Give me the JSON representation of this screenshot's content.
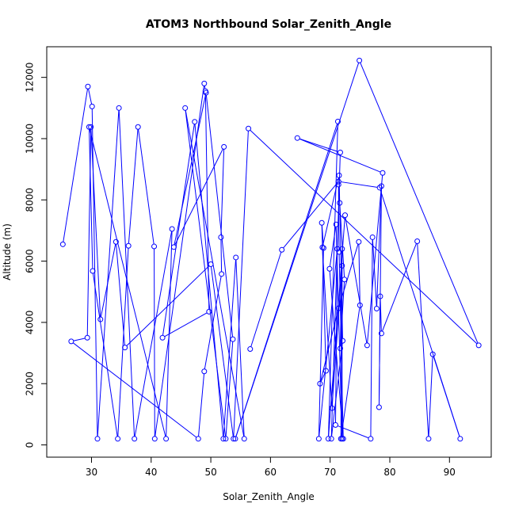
{
  "chart_data": {
    "type": "line",
    "title": "ATOM3 Northbound Solar_Zenith_Angle",
    "xlabel": "Solar_Zenith_Angle",
    "ylabel": "Altitude (m)",
    "xlim": [
      22.5,
      97
    ],
    "ylim": [
      -400,
      13000
    ],
    "x_ticks": [
      30,
      40,
      50,
      60,
      70,
      80,
      90
    ],
    "y_ticks": [
      0,
      2000,
      4000,
      6000,
      8000,
      10000,
      12000
    ],
    "grid": false,
    "legend": "none",
    "series": [
      {
        "color": "#0000ff",
        "marker": "open-circle",
        "points": [
          [
            25.2,
            6550
          ],
          [
            29.4,
            11700
          ],
          [
            30.1,
            11050
          ],
          [
            31.0,
            200
          ],
          [
            34.6,
            11000
          ],
          [
            37.2,
            200
          ],
          [
            43.5,
            7050
          ],
          [
            42.5,
            200
          ],
          [
            29.6,
            10380
          ],
          [
            30.2,
            5680
          ],
          [
            34.4,
            200
          ],
          [
            36.2,
            6500
          ],
          [
            37.8,
            10380
          ],
          [
            40.5,
            6480
          ],
          [
            40.6,
            200
          ],
          [
            48.9,
            11800
          ],
          [
            49.1,
            11550
          ],
          [
            49.7,
            4350
          ],
          [
            41.9,
            3500
          ],
          [
            47.3,
            10550
          ],
          [
            52.1,
            200
          ],
          [
            54.2,
            6120
          ],
          [
            55.6,
            200
          ],
          [
            45.7,
            11000
          ],
          [
            52.5,
            200
          ],
          [
            53.7,
            3450
          ],
          [
            49.2,
            11500
          ],
          [
            43.8,
            6460
          ],
          [
            52.2,
            9730
          ],
          [
            51.7,
            6780
          ],
          [
            51.8,
            5580
          ],
          [
            48.9,
            2400
          ],
          [
            47.9,
            200
          ],
          [
            26.6,
            3380
          ],
          [
            29.3,
            3500
          ],
          [
            29.9,
            10380
          ],
          [
            31.5,
            4100
          ],
          [
            34.1,
            6630
          ],
          [
            35.6,
            3180
          ],
          [
            50.0,
            5900
          ],
          [
            53.8,
            200
          ],
          [
            56.3,
            10330
          ],
          [
            94.9,
            3250
          ],
          [
            74.9,
            12550
          ],
          [
            54.1,
            200
          ],
          [
            71.3,
            10560
          ],
          [
            69.7,
            200
          ],
          [
            72.5,
            7500
          ],
          [
            76.2,
            3250
          ],
          [
            78.8,
            8880
          ],
          [
            64.5,
            10020
          ],
          [
            71.7,
            9550
          ],
          [
            70.2,
            200
          ],
          [
            72.1,
            3400
          ],
          [
            71.5,
            8800
          ],
          [
            68.7,
            6450
          ],
          [
            70.3,
            1200
          ],
          [
            72.0,
            5850
          ],
          [
            72.0,
            200
          ],
          [
            71.0,
            7200
          ],
          [
            69.9,
            5750
          ],
          [
            72.2,
            200
          ],
          [
            71.5,
            6300
          ],
          [
            71.4,
            8500
          ],
          [
            71.6,
            7900
          ],
          [
            72.4,
            5400
          ],
          [
            71.7,
            3150
          ],
          [
            72.0,
            6400
          ],
          [
            71.8,
            200
          ],
          [
            75.0,
            4560
          ],
          [
            74.8,
            6630
          ],
          [
            71.4,
            4460
          ],
          [
            68.3,
            2000
          ],
          [
            69.3,
            2420
          ],
          [
            68.6,
            7250
          ],
          [
            68.9,
            6430
          ],
          [
            68.1,
            200
          ],
          [
            71.2,
            6400
          ],
          [
            70.9,
            650
          ],
          [
            76.8,
            200
          ],
          [
            77.1,
            6780
          ],
          [
            77.8,
            4450
          ],
          [
            78.6,
            8450
          ],
          [
            78.2,
            1230
          ],
          [
            78.4,
            4850
          ],
          [
            78.6,
            3640
          ],
          [
            84.6,
            6650
          ],
          [
            86.5,
            200
          ],
          [
            87.2,
            2960
          ],
          [
            91.8,
            200
          ],
          [
            78.3,
            8400
          ],
          [
            71.4,
            8600
          ],
          [
            61.9,
            6370
          ],
          [
            56.6,
            3130
          ]
        ]
      }
    ]
  }
}
